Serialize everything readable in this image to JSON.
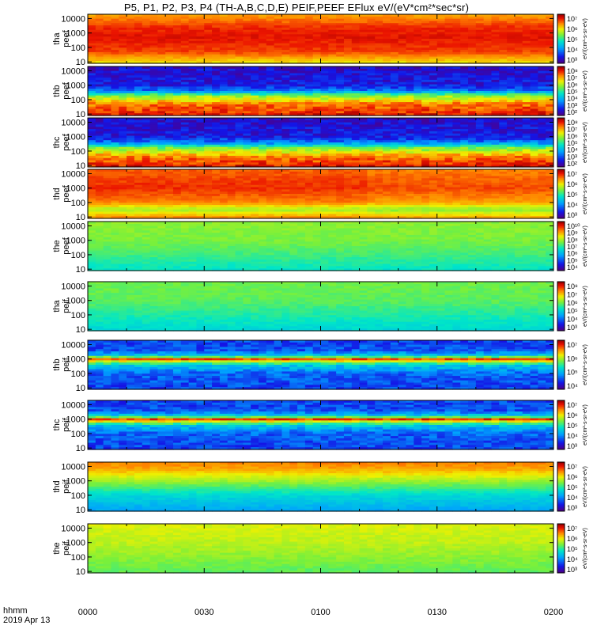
{
  "title": "P5, P1, P2, P3, P4 (TH-A,B,C,D,E) PEIF,PEEF EFlux eV/(eV*cm²*sec*sr)",
  "time_axis": {
    "label": "hhmm",
    "date": "2019 Apr 13",
    "ticks": [
      "0000",
      "0030",
      "0100",
      "0130",
      "0200"
    ]
  },
  "chart_data": {
    "type": "heatmap",
    "title": "P5, P1, P2, P3, P4 (TH-A,B,C,D,E) PEIF,PEEF EFlux eV/(eV*cm²*sec*sr)",
    "x_range": [
      "0000",
      "0200"
    ],
    "y_scale": "log",
    "panels": [
      {
        "id": "tha_peef",
        "label": [
          "tha",
          "peef"
        ],
        "yticks": [
          "10000",
          "1000",
          "100",
          "10"
        ],
        "cbar_ticks": [
          "10⁷",
          "10⁶",
          "10⁵",
          "10⁴",
          "10³"
        ],
        "cbar_label": "eV/(cm²-s-sr-eV)",
        "profile": [
          [
            1,
            0.72
          ],
          [
            1.7,
            0.88
          ],
          [
            2.7,
            0.93
          ],
          [
            3.4,
            0.9
          ],
          [
            4.3,
            0.78
          ]
        ]
      },
      {
        "id": "thb_peef",
        "label": [
          "thb",
          "peef"
        ],
        "yticks": [
          "10000",
          "1000",
          "100",
          "10"
        ],
        "cbar_ticks": [
          "10⁸",
          "10⁷",
          "10⁶",
          "10⁵",
          "10⁴",
          "10³",
          "10²"
        ],
        "cbar_label": "eV/(cm²-s-sr-eV)",
        "profile": [
          [
            1,
            0.92
          ],
          [
            1.7,
            0.82
          ],
          [
            2.3,
            0.58
          ],
          [
            2.6,
            0.25
          ],
          [
            3.0,
            0.12
          ],
          [
            4.3,
            0.08
          ]
        ]
      },
      {
        "id": "thc_peef",
        "label": [
          "thc",
          "peef"
        ],
        "yticks": [
          "10000",
          "1000",
          "100",
          "10"
        ],
        "cbar_ticks": [
          "10⁸",
          "10⁷",
          "10⁶",
          "10⁵",
          "10⁴",
          "10³",
          "10²"
        ],
        "cbar_label": "eV/(cm²-s-sr-eV)",
        "profile": [
          [
            1,
            0.92
          ],
          [
            1.6,
            0.82
          ],
          [
            2.2,
            0.58
          ],
          [
            2.6,
            0.25
          ],
          [
            3.0,
            0.12
          ],
          [
            4.3,
            0.08
          ]
        ]
      },
      {
        "id": "thd_peef",
        "label": [
          "thd",
          "peef"
        ],
        "yticks": [
          "10000",
          "1000",
          "100",
          "10"
        ],
        "cbar_ticks": [
          "10⁷",
          "10⁶",
          "10⁵",
          "10⁴",
          "10³"
        ],
        "cbar_label": "eV/(cm²-s-sr-eV)",
        "profile": [
          [
            1,
            0.8
          ],
          [
            1.5,
            0.62
          ],
          [
            2.0,
            0.82
          ],
          [
            3.0,
            0.9
          ],
          [
            3.6,
            0.88
          ],
          [
            4.3,
            0.85
          ]
        ]
      },
      {
        "id": "the_peef",
        "label": [
          "the",
          "peef"
        ],
        "yticks": [
          "10000",
          "1000",
          "100",
          "10"
        ],
        "cbar_ticks": [
          "10¹⁰",
          "10⁹",
          "10⁸",
          "10⁷",
          "10⁶",
          "10⁵",
          "10⁴"
        ],
        "cbar_label": "eV/(cm²-s-sr-eV)",
        "profile": [
          [
            1,
            0.45
          ],
          [
            2,
            0.52
          ],
          [
            3,
            0.58
          ],
          [
            4.3,
            0.6
          ]
        ]
      },
      {
        "id": "tha_peif",
        "label": [
          "tha",
          "peif"
        ],
        "yticks": [
          "10000",
          "1000",
          "100",
          "10"
        ],
        "cbar_ticks": [
          "10⁸",
          "10⁷",
          "10⁶",
          "10⁵",
          "10⁴",
          "10³"
        ],
        "cbar_label": "eV/(cm²-s-sr-eV)",
        "profile": [
          [
            1,
            0.42
          ],
          [
            2,
            0.48
          ],
          [
            3,
            0.55
          ],
          [
            4.3,
            0.57
          ]
        ]
      },
      {
        "id": "thb_peif",
        "label": [
          "thb",
          "peif"
        ],
        "yticks": [
          "10000",
          "1000",
          "100",
          "10"
        ],
        "cbar_ticks": [
          "10⁷",
          "10⁶",
          "10⁵",
          "10⁴"
        ],
        "cbar_label": "eV/(cm²-s-sr-eV)",
        "profile": [
          [
            1,
            0.18
          ],
          [
            2,
            0.22
          ],
          [
            2.6,
            0.4
          ],
          [
            3.0,
            0.88
          ],
          [
            3.2,
            0.4
          ],
          [
            3.6,
            0.2
          ],
          [
            4.3,
            0.18
          ]
        ]
      },
      {
        "id": "thc_peif",
        "label": [
          "thc",
          "peif"
        ],
        "yticks": [
          "10000",
          "1000",
          "100",
          "10"
        ],
        "cbar_ticks": [
          "10⁷",
          "10⁶",
          "10⁵",
          "10⁴",
          "10³"
        ],
        "cbar_label": "eV/(cm²-s-sr-eV)",
        "profile": [
          [
            1,
            0.18
          ],
          [
            2,
            0.22
          ],
          [
            2.6,
            0.4
          ],
          [
            3.0,
            0.9
          ],
          [
            3.2,
            0.4
          ],
          [
            3.6,
            0.2
          ],
          [
            4.3,
            0.18
          ]
        ]
      },
      {
        "id": "thd_peif",
        "label": [
          "thd",
          "peif"
        ],
        "yticks": [
          "10000",
          "1000",
          "100",
          "10"
        ],
        "cbar_ticks": [
          "10⁷",
          "10⁶",
          "10⁵",
          "10⁴",
          "10³"
        ],
        "cbar_label": "eV/(cm²-s-sr-eV)",
        "profile": [
          [
            1,
            0.32
          ],
          [
            2,
            0.42
          ],
          [
            3,
            0.62
          ],
          [
            3.8,
            0.78
          ],
          [
            4.3,
            0.82
          ]
        ]
      },
      {
        "id": "the_peif",
        "label": [
          "the",
          "peif"
        ],
        "yticks": [
          "10000",
          "1000",
          "100",
          "10"
        ],
        "cbar_ticks": [
          "10⁷",
          "10⁶",
          "10⁵",
          "10⁴",
          "10³"
        ],
        "cbar_label": "eV/(cm²-s-sr-eV)",
        "profile": [
          [
            1,
            0.55
          ],
          [
            2,
            0.6
          ],
          [
            3,
            0.65
          ],
          [
            4.3,
            0.68
          ]
        ]
      }
    ]
  }
}
